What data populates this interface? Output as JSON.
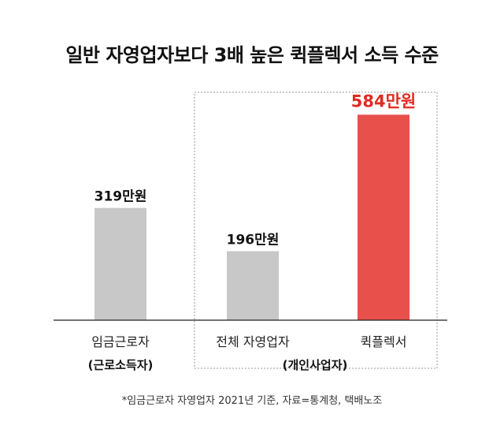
{
  "title": "일반 자영업자보다 3배 높은 퀵플렉서 소득 수준",
  "footnote": "*임금근로자 자영업자 2021년 기준, 자료=통계청, 택배노조",
  "group_labels": {
    "wage_group": "(근로소득자)",
    "self_employed_group": "(개인사업자)"
  },
  "chart_data": {
    "type": "bar",
    "title": "일반 자영업자보다 3배 높은 퀵플렉서 소득 수준",
    "categories": [
      "임금근로자",
      "전체 자영업자",
      "퀵플렉서"
    ],
    "values": [
      319,
      196,
      584
    ],
    "value_labels": [
      "319만원",
      "196만원",
      "584만원"
    ],
    "unit": "만원",
    "colors": [
      "#c8c8c8",
      "#c8c8c8",
      "#e8504b"
    ],
    "highlight_label_color": "#e02b22",
    "ylim": [
      0,
      650
    ],
    "grid": false,
    "legend": "none"
  }
}
